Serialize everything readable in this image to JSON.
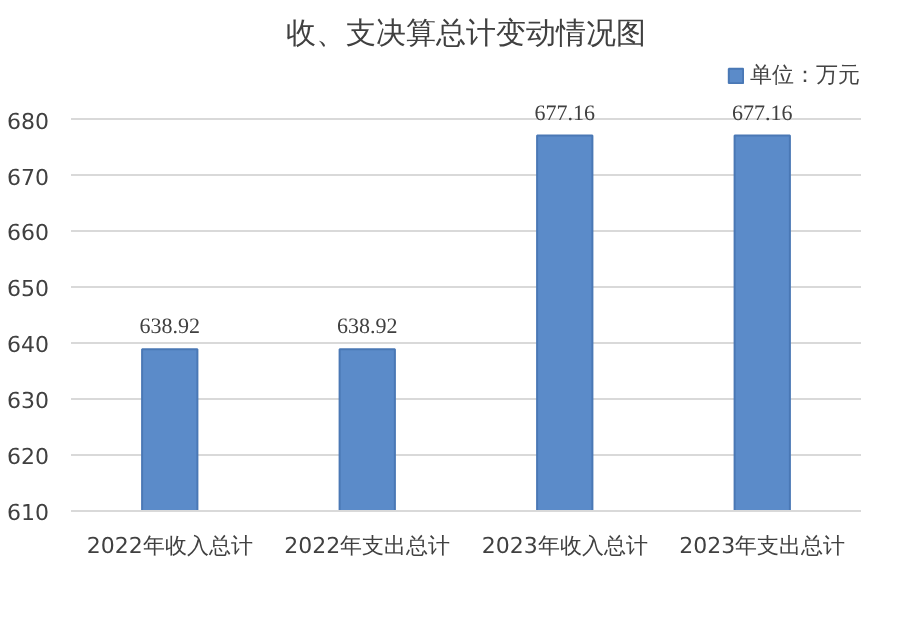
{
  "chart_data": {
    "type": "bar",
    "title": "收、支决算总计变动情况图",
    "categories": [
      "2022年收入总计",
      "2022年支出总计",
      "2023年收入总计",
      "2023年支出总计"
    ],
    "series": [
      {
        "name": "单位：万元",
        "color": "#5b8bc9",
        "values": [
          638.92,
          638.92,
          677.16,
          677.16
        ]
      }
    ],
    "ylim": [
      610,
      680
    ],
    "yticks": [
      610,
      620,
      630,
      640,
      650,
      660,
      670,
      680
    ],
    "grid": "y",
    "legend": "top right",
    "data_labels": true
  }
}
